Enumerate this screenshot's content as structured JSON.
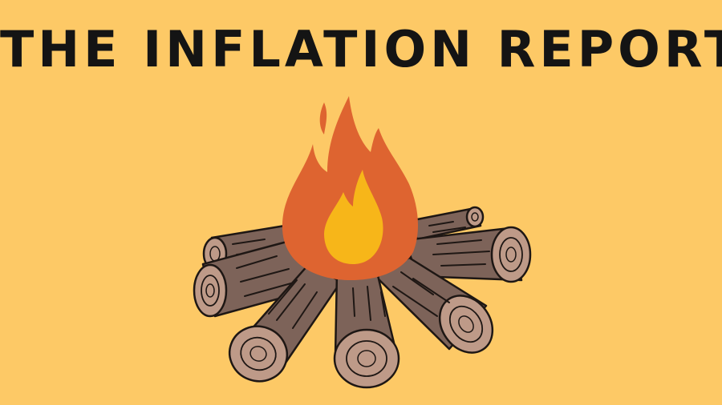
{
  "banner": {
    "title": "THE INFLATION REPORT",
    "background_color": "#FDC966",
    "title_color": "#141414"
  },
  "illustration": {
    "subject": "campfire",
    "icon": "campfire-icon",
    "colors": {
      "flame_outer": "#DE6430",
      "flame_inner": "#F7B619",
      "log_bark": "#7D6359",
      "log_end": "#BE9A88",
      "outline": "#1E1714"
    }
  }
}
